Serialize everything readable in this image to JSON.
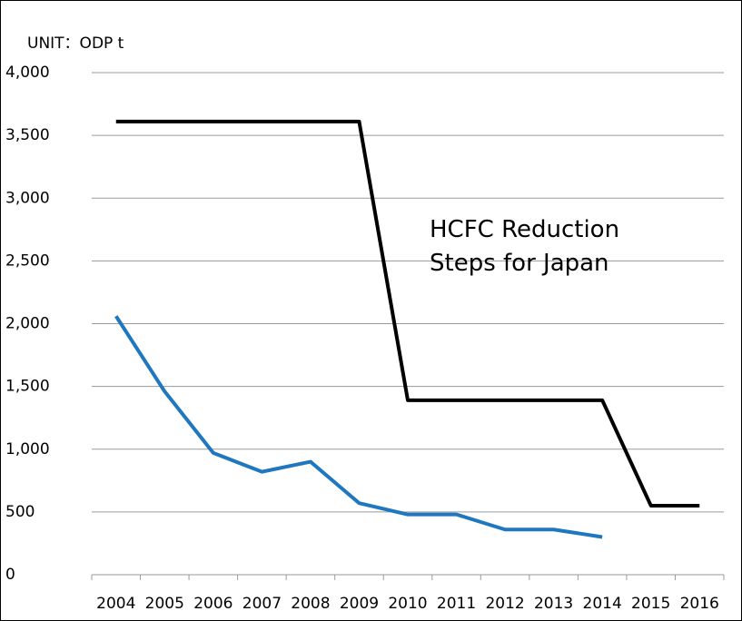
{
  "chart_data": {
    "type": "line",
    "unit_label": "UNIT：ODP t",
    "annotation": "HCFC Reduction Steps for Japan",
    "categories": [
      "2004",
      "2005",
      "2006",
      "2007",
      "2008",
      "2009",
      "2010",
      "2011",
      "2012",
      "2013",
      "2014",
      "2015",
      "2016"
    ],
    "series": [
      {
        "color": "#000000",
        "values": [
          3610,
          3610,
          3610,
          3610,
          3610,
          3610,
          1390,
          1390,
          1390,
          1390,
          1390,
          550,
          550
        ]
      },
      {
        "color": "#1f77c0",
        "values": [
          2060,
          1460,
          970,
          820,
          900,
          570,
          480,
          480,
          360,
          360,
          300,
          null,
          null
        ]
      }
    ],
    "ylim": [
      0,
      4000
    ],
    "yticks": [
      0,
      500,
      {
        "value": 1000,
        "label": "1,000"
      },
      {
        "value": 1500,
        "label": "1,500"
      },
      {
        "value": 2000,
        "label": "2,000"
      },
      {
        "value": 2500,
        "label": "2,500"
      },
      {
        "value": 3000,
        "label": "3,000"
      },
      {
        "value": 3500,
        "label": "3,500"
      },
      {
        "value": 4000,
        "label": "4,000"
      }
    ],
    "grid": true
  }
}
